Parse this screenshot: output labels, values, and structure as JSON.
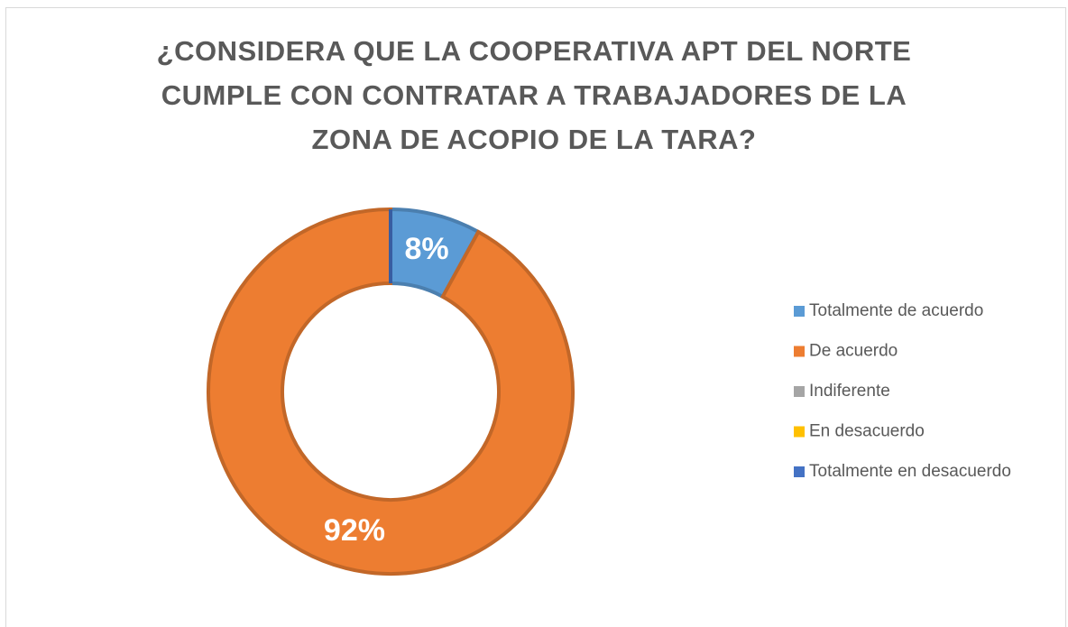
{
  "chart_data": {
    "type": "donut",
    "title": "¿CONSIDERA QUE LA COOPERATIVA APT DEL NORTE CUMPLE CON CONTRATAR A TRABAJADORES DE LA ZONA DE ACOPIO DE LA TARA?",
    "categories": [
      "Totalmente de acuerdo",
      "De acuerdo",
      "Indiferente",
      "En desacuerdo",
      "Totalmente en desacuerdo"
    ],
    "values": [
      8,
      92,
      0,
      0,
      0
    ],
    "value_labels": [
      "8%",
      "92%",
      null,
      null,
      null
    ],
    "colors": [
      "#5b9bd5",
      "#ed7d31",
      "#a5a5a5",
      "#ffc000",
      "#4472c4"
    ],
    "legend": "right"
  }
}
